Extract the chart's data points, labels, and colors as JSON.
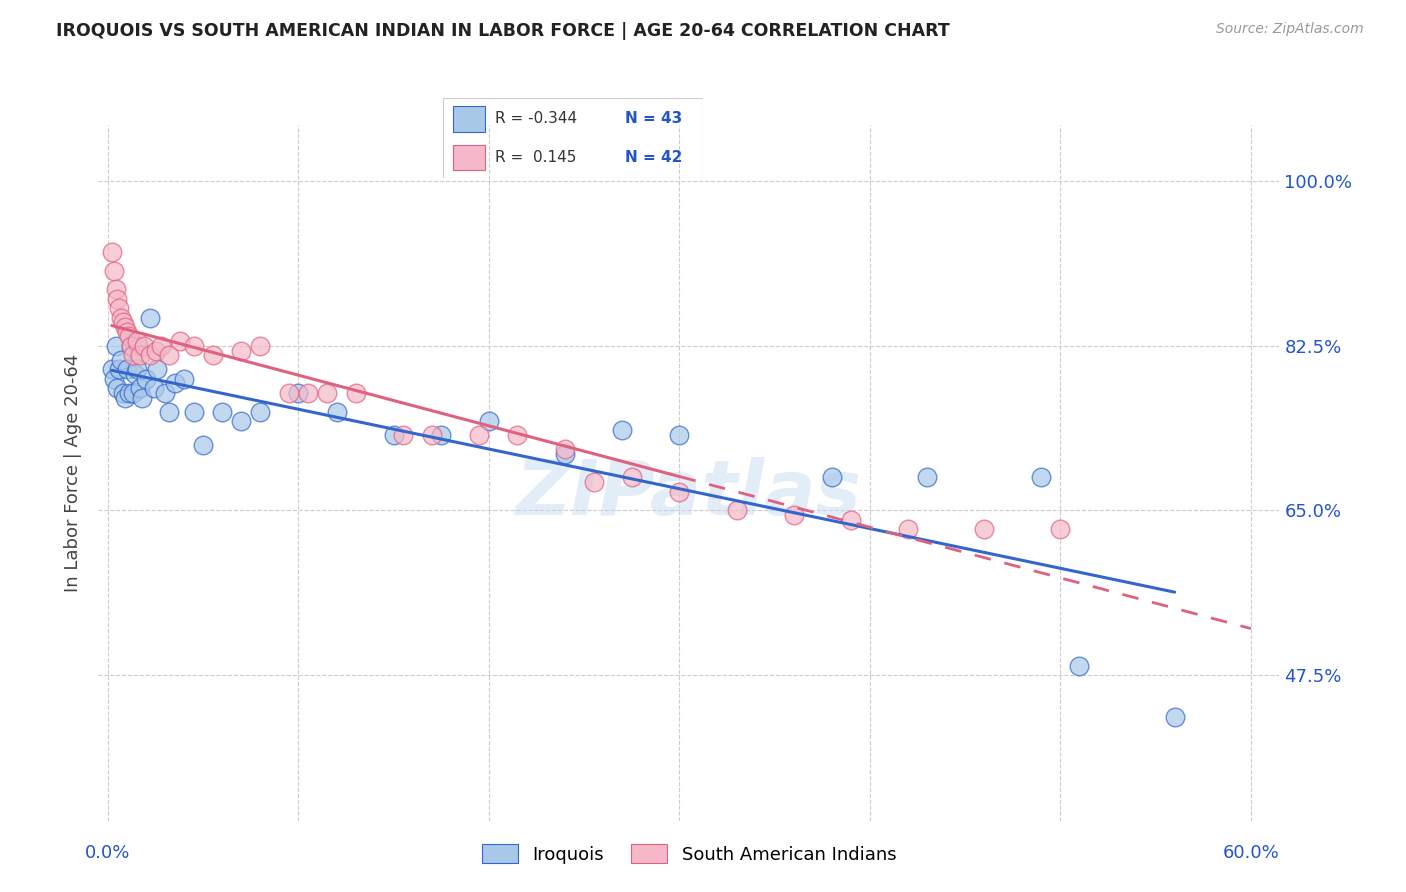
{
  "title": "IROQUOIS VS SOUTH AMERICAN INDIAN IN LABOR FORCE | AGE 20-64 CORRELATION CHART",
  "source": "Source: ZipAtlas.com",
  "ylabel": "In Labor Force | Age 20-64",
  "ytick_labels": [
    "100.0%",
    "82.5%",
    "65.0%",
    "47.5%"
  ],
  "ytick_values": [
    1.0,
    0.825,
    0.65,
    0.475
  ],
  "xlim": [
    -0.005,
    0.615
  ],
  "ylim": [
    0.32,
    1.06
  ],
  "plot_xlim": [
    0.0,
    0.6
  ],
  "watermark": "ZIPatlas",
  "legend_r_blue": "-0.344",
  "legend_n_blue": "43",
  "legend_r_pink": " 0.145",
  "legend_n_pink": "42",
  "blue_color": "#a8c8e8",
  "pink_color": "#f4b8c8",
  "line_blue": "#3366cc",
  "line_pink": "#e06080",
  "iroquois_label": "Iroquois",
  "sa_label": "South American Indians",
  "blue_x": [
    0.002,
    0.003,
    0.004,
    0.005,
    0.006,
    0.007,
    0.008,
    0.009,
    0.01,
    0.011,
    0.012,
    0.013,
    0.014,
    0.015,
    0.016,
    0.017,
    0.018,
    0.02,
    0.022,
    0.024,
    0.026,
    0.03,
    0.032,
    0.035,
    0.04,
    0.045,
    0.05,
    0.06,
    0.07,
    0.08,
    0.1,
    0.12,
    0.15,
    0.175,
    0.2,
    0.24,
    0.27,
    0.3,
    0.38,
    0.43,
    0.49,
    0.51,
    0.56
  ],
  "blue_y": [
    0.8,
    0.79,
    0.825,
    0.78,
    0.8,
    0.81,
    0.775,
    0.77,
    0.8,
    0.775,
    0.825,
    0.775,
    0.795,
    0.8,
    0.825,
    0.78,
    0.77,
    0.79,
    0.855,
    0.78,
    0.8,
    0.775,
    0.755,
    0.785,
    0.79,
    0.755,
    0.72,
    0.755,
    0.745,
    0.755,
    0.775,
    0.755,
    0.73,
    0.73,
    0.745,
    0.71,
    0.735,
    0.73,
    0.685,
    0.685,
    0.685,
    0.485,
    0.43
  ],
  "pink_x": [
    0.002,
    0.003,
    0.004,
    0.005,
    0.006,
    0.007,
    0.008,
    0.009,
    0.01,
    0.011,
    0.012,
    0.013,
    0.015,
    0.017,
    0.019,
    0.022,
    0.025,
    0.028,
    0.032,
    0.038,
    0.045,
    0.055,
    0.07,
    0.08,
    0.095,
    0.105,
    0.115,
    0.13,
    0.155,
    0.17,
    0.195,
    0.215,
    0.24,
    0.255,
    0.275,
    0.3,
    0.33,
    0.36,
    0.39,
    0.42,
    0.46,
    0.5
  ],
  "pink_y": [
    0.925,
    0.905,
    0.885,
    0.875,
    0.865,
    0.855,
    0.85,
    0.845,
    0.84,
    0.835,
    0.825,
    0.815,
    0.83,
    0.815,
    0.825,
    0.815,
    0.82,
    0.825,
    0.815,
    0.83,
    0.825,
    0.815,
    0.82,
    0.825,
    0.775,
    0.775,
    0.775,
    0.775,
    0.73,
    0.73,
    0.73,
    0.73,
    0.715,
    0.68,
    0.685,
    0.67,
    0.65,
    0.645,
    0.64,
    0.63,
    0.63,
    0.63
  ]
}
